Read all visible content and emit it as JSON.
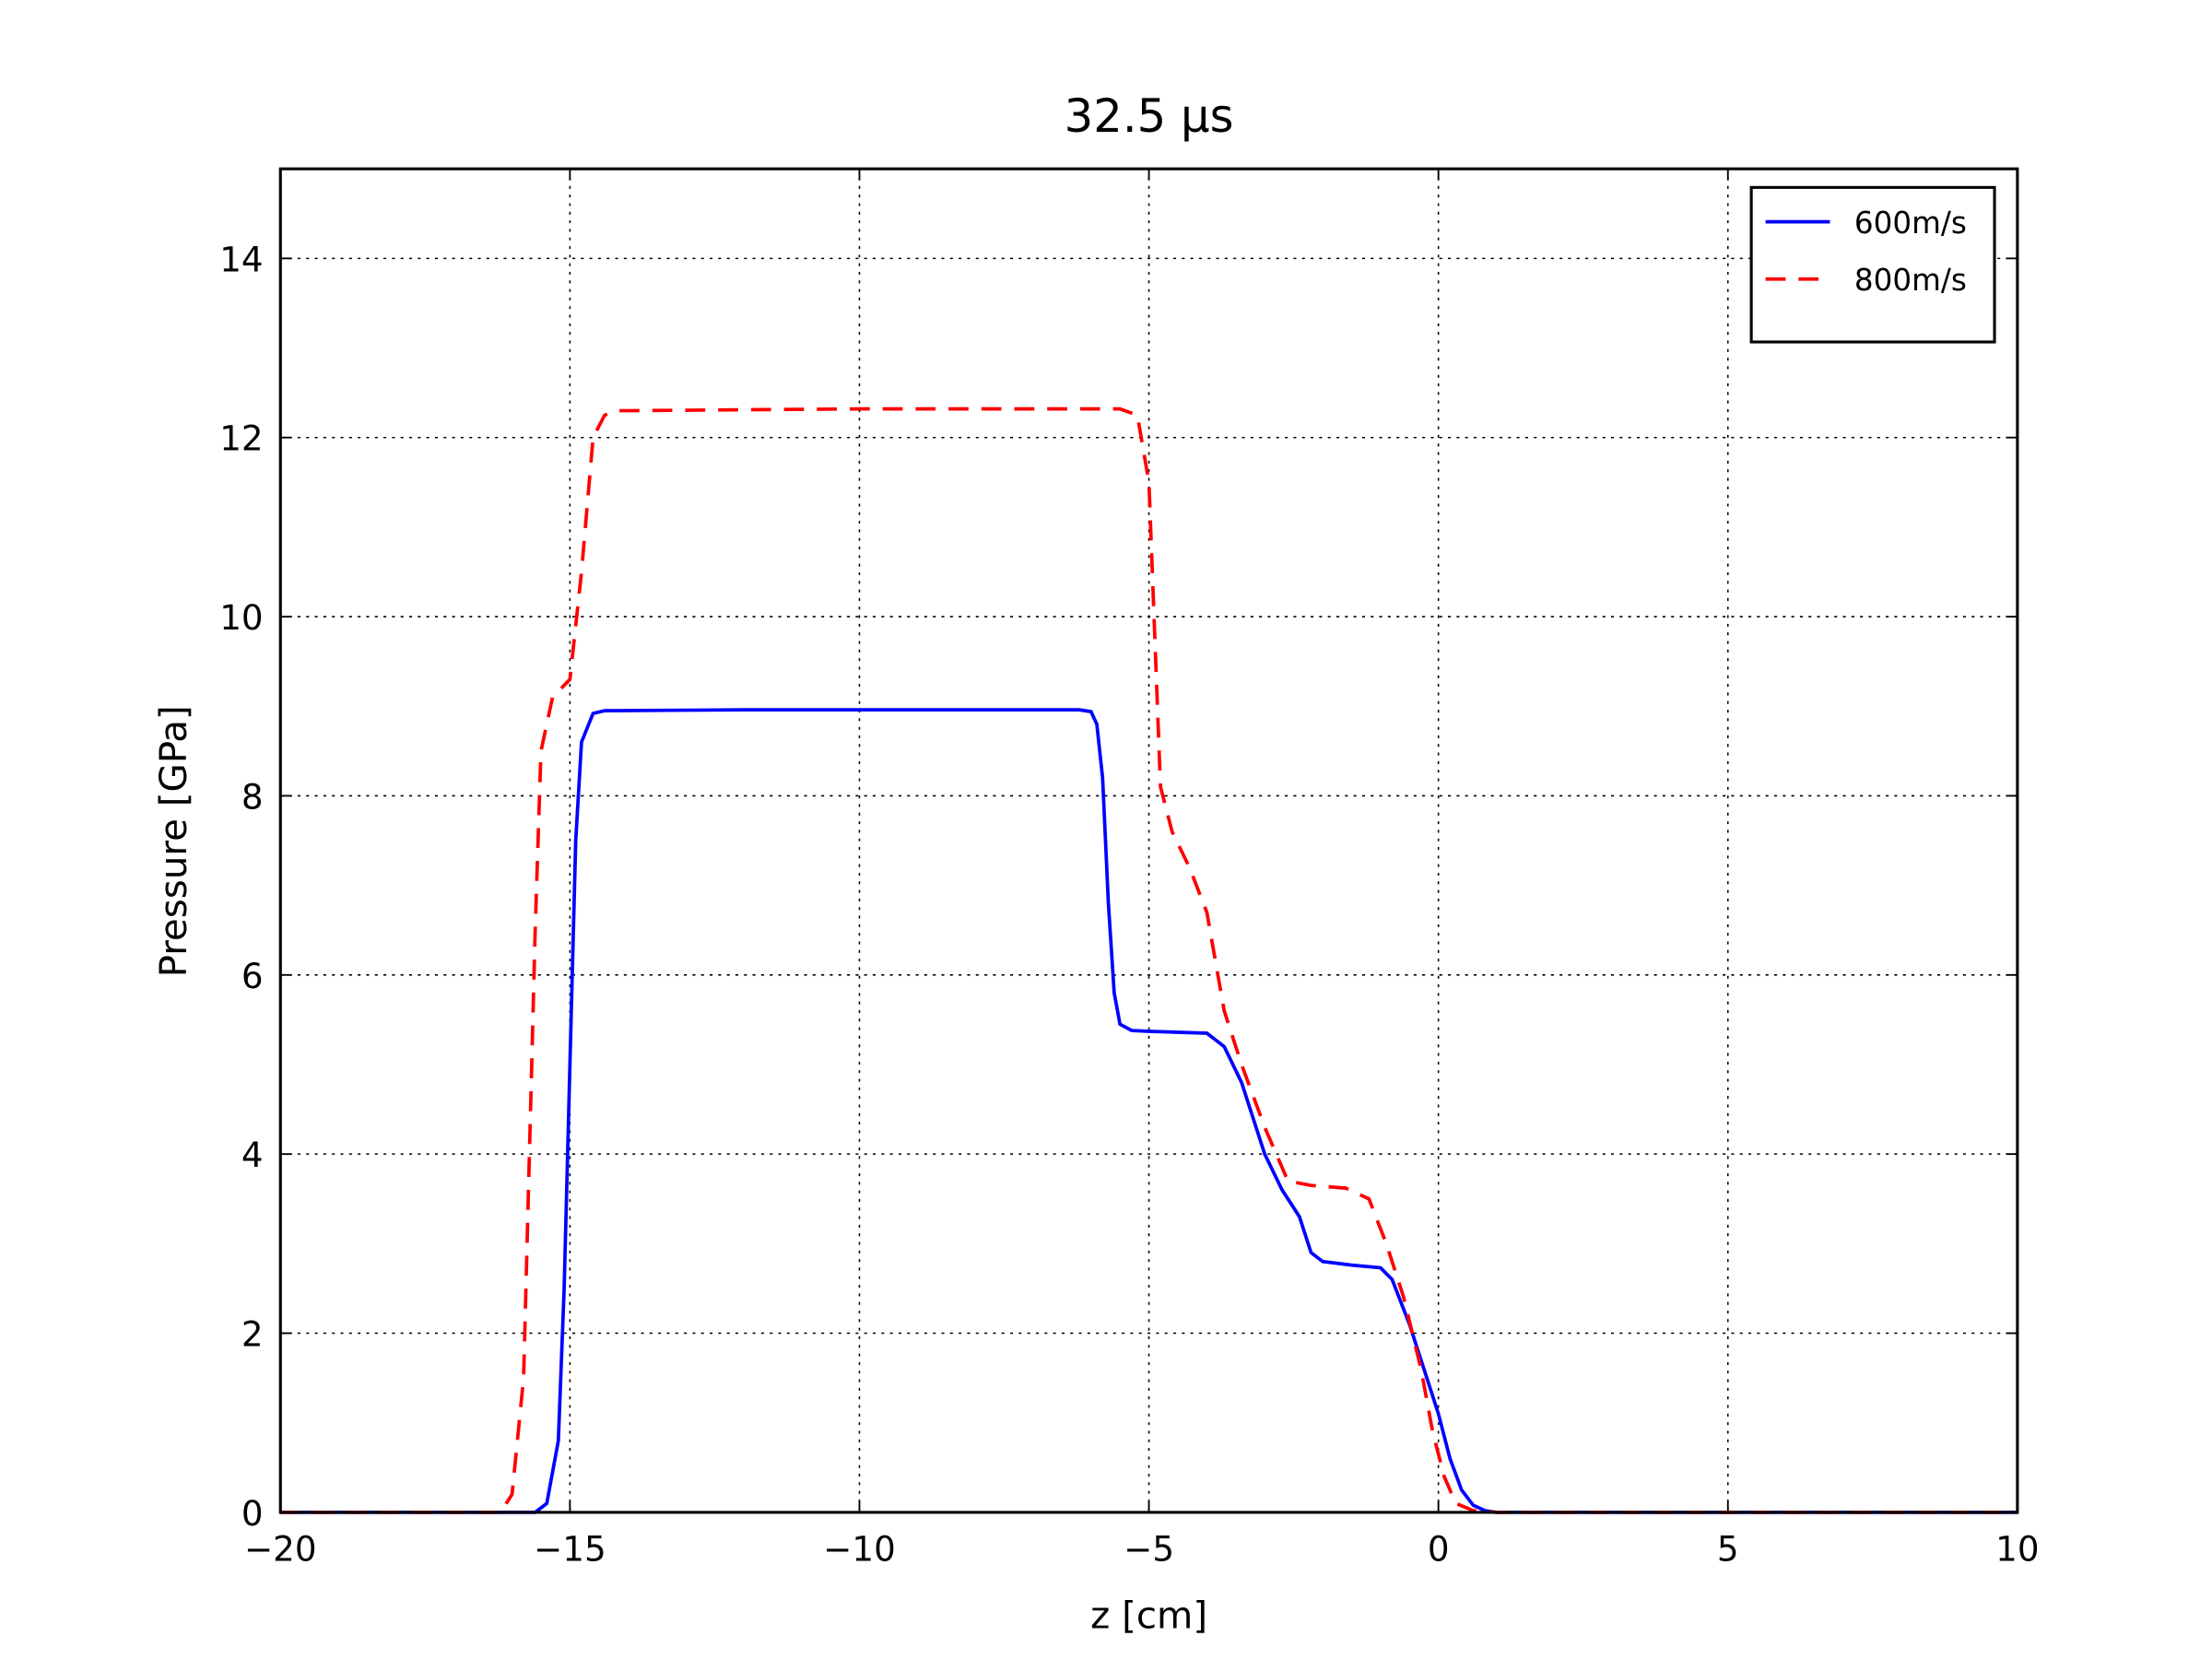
{
  "chart_data": {
    "type": "line",
    "title": "32.5 μs",
    "xlabel": "z [cm]",
    "ylabel": "Pressure [GPa]",
    "xlim": [
      -20,
      10
    ],
    "ylim": [
      0,
      15
    ],
    "xticks": [
      {
        "value": -20,
        "label": "−20"
      },
      {
        "value": -15,
        "label": "−15"
      },
      {
        "value": -10,
        "label": "−10"
      },
      {
        "value": -5,
        "label": "−5"
      },
      0,
      5,
      10
    ],
    "yticks": [
      0,
      2,
      4,
      6,
      8,
      10,
      12,
      14
    ],
    "grid": true,
    "legend": "upper right",
    "series": [
      {
        "name": "600m/s",
        "color": "#0000ff",
        "dash": "solid",
        "x": [
          -20,
          -16,
          -15.6,
          -15.4,
          -15.2,
          -15.1,
          -15.0,
          -14.9,
          -14.8,
          -14.6,
          -14.4,
          -12,
          -8,
          -6.2,
          -6.0,
          -5.9,
          -5.8,
          -5.7,
          -5.6,
          -5.5,
          -5.3,
          -5,
          -4.5,
          -4,
          -3.7,
          -3.4,
          -3,
          -2.7,
          -2.4,
          -2.2,
          -2.0,
          -1.5,
          -1.0,
          -0.8,
          -0.5,
          -0.2,
          0,
          0.2,
          0.4,
          0.6,
          0.8,
          1.0,
          1.5,
          10
        ],
        "values": [
          0,
          0,
          0,
          0.1,
          0.8,
          2.5,
          5,
          7.5,
          8.6,
          8.92,
          8.95,
          8.96,
          8.96,
          8.96,
          8.94,
          8.8,
          8.2,
          6.8,
          5.8,
          5.45,
          5.38,
          5.37,
          5.36,
          5.35,
          5.2,
          4.8,
          4.0,
          3.6,
          3.3,
          2.9,
          2.8,
          2.76,
          2.73,
          2.6,
          2.1,
          1.5,
          1.1,
          0.6,
          0.25,
          0.08,
          0.02,
          0.0,
          0,
          0
        ]
      },
      {
        "name": "800m/s",
        "color": "#ff0000",
        "dash": "dashed",
        "x": [
          -20,
          -16.2,
          -16.0,
          -15.8,
          -15.7,
          -15.6,
          -15.5,
          -15.3,
          -15.0,
          -14.8,
          -14.6,
          -14.4,
          -14.2,
          -14,
          -10,
          -5.5,
          -5.2,
          -5.0,
          -4.9,
          -4.8,
          -4.6,
          -4.3,
          -4,
          -3.7,
          -3.4,
          -3,
          -2.6,
          -2.2,
          -1.6,
          -1.2,
          -0.9,
          -0.6,
          -0.3,
          -0.1,
          0.1,
          0.3,
          0.6,
          1.0,
          10
        ],
        "values": [
          0,
          0,
          0.2,
          1.5,
          4,
          6.5,
          8.5,
          9.1,
          9.3,
          10.5,
          12.0,
          12.25,
          12.3,
          12.3,
          12.32,
          12.32,
          12.25,
          11.5,
          9.8,
          8.1,
          7.6,
          7.2,
          6.7,
          5.6,
          5.0,
          4.3,
          3.7,
          3.65,
          3.62,
          3.5,
          3.0,
          2.4,
          1.6,
          0.9,
          0.4,
          0.1,
          0.02,
          0,
          0
        ]
      }
    ]
  }
}
